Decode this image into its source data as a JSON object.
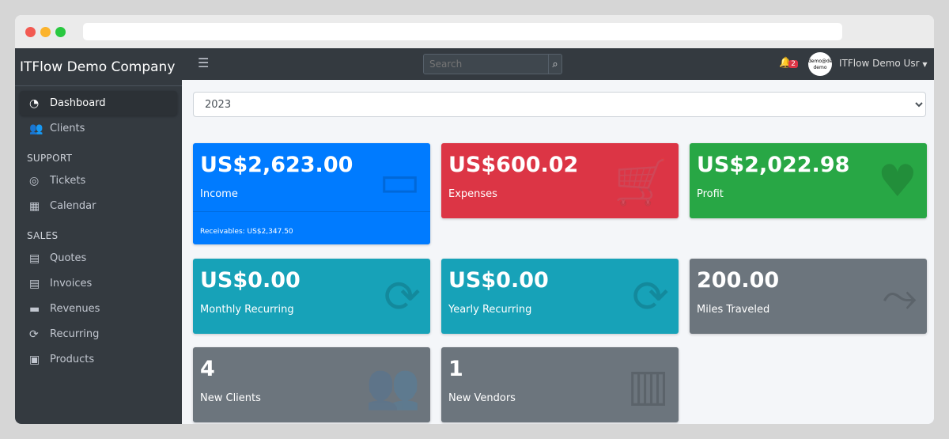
{
  "brand": "ITFlow Demo Company",
  "sidebar": {
    "items": [
      {
        "label": "Dashboard",
        "icon": "tachometer-icon"
      },
      {
        "label": "Clients",
        "icon": "users-icon"
      }
    ],
    "support_header": "SUPPORT",
    "support": [
      {
        "label": "Tickets",
        "icon": "life-ring-icon"
      },
      {
        "label": "Calendar",
        "icon": "calendar-icon"
      }
    ],
    "sales_header": "SALES",
    "sales": [
      {
        "label": "Quotes",
        "icon": "quote-file-icon"
      },
      {
        "label": "Invoices",
        "icon": "invoice-file-icon"
      },
      {
        "label": "Revenues",
        "icon": "credit-card-icon"
      },
      {
        "label": "Recurring",
        "icon": "sync-icon"
      },
      {
        "label": "Products",
        "icon": "box-icon"
      }
    ]
  },
  "topbar": {
    "search_placeholder": "Search",
    "notifications": "2",
    "avatar_text": "demo@demo demo",
    "user": "ITFlow Demo Usr"
  },
  "year": "2023",
  "cards": [
    {
      "value": "US$2,623.00",
      "label": "Income",
      "footer": "Receivables: US$2,347.50",
      "color": "#007bff"
    },
    {
      "value": "US$600.02",
      "label": "Expenses",
      "color": "#dc3545"
    },
    {
      "value": "US$2,022.98",
      "label": "Profit",
      "color": "#28a745"
    },
    {
      "value": "US$0.00",
      "label": "Monthly Recurring",
      "color": "#17a2b8"
    },
    {
      "value": "US$0.00",
      "label": "Yearly Recurring",
      "color": "#17a2b8"
    },
    {
      "value": "200.00",
      "label": "Miles Traveled",
      "color": "#6c757d"
    },
    {
      "value": "4",
      "label": "New Clients",
      "color": "#6c757d"
    },
    {
      "value": "1",
      "label": "New Vendors",
      "color": "#6c757d"
    }
  ]
}
